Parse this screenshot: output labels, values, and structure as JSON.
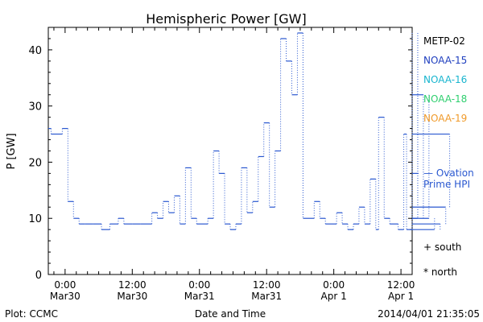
{
  "chart_data": {
    "type": "line",
    "title": "Hemispheric Power [GW]",
    "ylabel": "P [GW]",
    "xlabel": "Date and Time",
    "ylim": [
      0,
      44
    ],
    "yticks": [
      0,
      10,
      20,
      30,
      40
    ],
    "xlim_hours": [
      -3,
      62
    ],
    "xticks": [
      {
        "hour": 0,
        "time": "0:00",
        "date": "Mar30"
      },
      {
        "hour": 12,
        "time": "12:00",
        "date": "Mar30"
      },
      {
        "hour": 24,
        "time": "0:00",
        "date": "Mar31"
      },
      {
        "hour": 36,
        "time": "12:00",
        "date": "Mar31"
      },
      {
        "hour": 48,
        "time": "0:00",
        "date": "Apr 1"
      },
      {
        "hour": 60,
        "time": "12:00",
        "date": "Apr 1"
      }
    ],
    "legend": [
      "METP-02",
      "NOAA-15",
      "NOAA-16",
      "NOAA-18",
      "NOAA-19"
    ],
    "legend_colors": [
      "#000000",
      "#1f3fbf",
      "#19b5cf",
      "#2fcf6f",
      "#f09a2a"
    ],
    "series_color": "#2a58d0",
    "ovation_label": [
      "— Ovation",
      "Prime HPI"
    ],
    "ovation_color": "#2a58d0",
    "ovation_value": 18,
    "marker_labels": [
      "+ south",
      "* north"
    ],
    "footer_left": "Plot: CCMC",
    "footer_right": "2014/04/01 21:35:05",
    "steps": [
      [
        -3.0,
        -2.5,
        26
      ],
      [
        -2.5,
        -0.5,
        25
      ],
      [
        -0.5,
        0.5,
        26
      ],
      [
        0.5,
        1.5,
        13
      ],
      [
        1.5,
        2.5,
        10
      ],
      [
        2.5,
        3.5,
        9
      ],
      [
        3.5,
        5.0,
        9
      ],
      [
        5.0,
        6.5,
        9
      ],
      [
        6.5,
        8.0,
        8
      ],
      [
        8.0,
        9.5,
        9
      ],
      [
        9.5,
        10.5,
        10
      ],
      [
        10.5,
        12.0,
        9
      ],
      [
        12.0,
        13.5,
        9
      ],
      [
        13.5,
        15.5,
        9
      ],
      [
        15.5,
        16.5,
        11
      ],
      [
        16.5,
        17.5,
        10
      ],
      [
        17.5,
        18.5,
        13
      ],
      [
        18.5,
        19.5,
        11
      ],
      [
        19.5,
        20.5,
        14
      ],
      [
        20.5,
        21.5,
        9
      ],
      [
        21.5,
        22.5,
        19
      ],
      [
        22.5,
        23.5,
        10
      ],
      [
        23.5,
        25.5,
        9
      ],
      [
        25.5,
        26.5,
        10
      ],
      [
        26.5,
        27.5,
        22
      ],
      [
        27.5,
        28.5,
        18
      ],
      [
        28.5,
        29.5,
        9
      ],
      [
        29.5,
        30.5,
        8
      ],
      [
        30.5,
        31.5,
        9
      ],
      [
        31.5,
        32.5,
        19
      ],
      [
        32.5,
        33.5,
        11
      ],
      [
        33.5,
        34.5,
        13
      ],
      [
        34.5,
        35.5,
        21
      ],
      [
        35.5,
        36.5,
        27
      ],
      [
        36.5,
        37.5,
        12
      ],
      [
        37.5,
        38.5,
        22
      ],
      [
        38.5,
        39.5,
        42
      ],
      [
        39.5,
        40.5,
        38
      ],
      [
        40.5,
        41.5,
        32
      ],
      [
        41.5,
        42.5,
        43
      ],
      [
        42.5,
        44.5,
        10
      ],
      [
        44.5,
        45.5,
        13
      ],
      [
        45.5,
        46.5,
        10
      ],
      [
        46.5,
        48.5,
        9
      ],
      [
        48.5,
        49.5,
        11
      ],
      [
        49.5,
        50.5,
        9
      ],
      [
        50.5,
        51.5,
        8
      ],
      [
        51.5,
        52.5,
        9
      ],
      [
        52.5,
        53.5,
        12
      ],
      [
        53.5,
        54.5,
        9
      ],
      [
        54.5,
        55.5,
        17
      ],
      [
        55.5,
        56.0,
        8
      ],
      [
        56.0,
        57.0,
        28
      ],
      [
        57.0,
        58.0,
        10
      ],
      [
        58.0,
        59.5,
        9
      ],
      [
        59.5,
        60.5,
        8
      ],
      [
        60.5,
        61.0,
        25
      ],
      [
        61.0,
        62.0,
        8
      ],
      [
        62.0,
        63.0,
        43
      ],
      [
        63.0,
        64.0,
        10
      ],
      [
        64.0,
        65.0,
        32
      ],
      [
        65.0,
        66.0,
        10
      ],
      [
        66.0,
        67.0,
        8
      ],
      [
        67.0,
        68.0,
        9
      ],
      [
        68.0,
        68.7,
        12
      ],
      [
        68.7,
        69.0,
        25
      ]
    ]
  }
}
